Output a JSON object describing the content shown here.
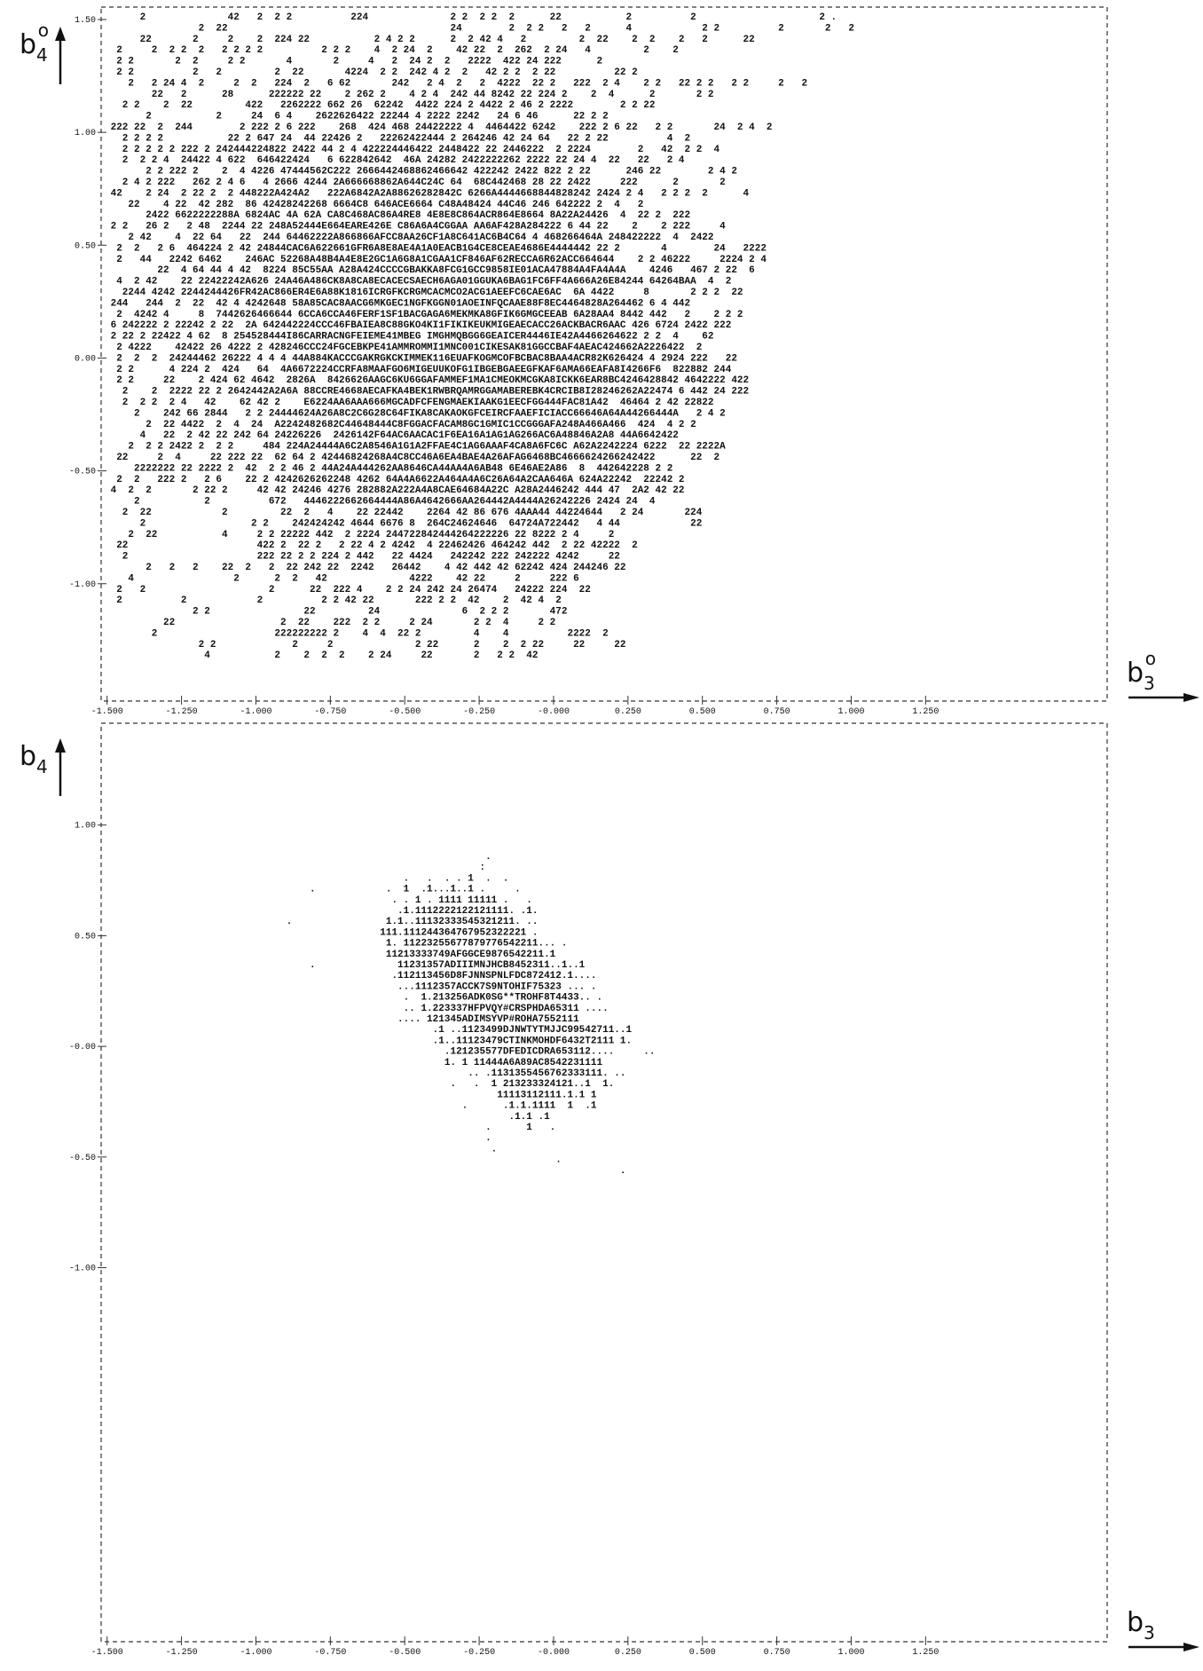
{
  "chart_data": [
    {
      "type": "character-plot",
      "y_label": {
        "base": "b",
        "sub": "4",
        "sup": "o"
      },
      "x_label": {
        "base": "b",
        "sub": "3",
        "sup": "o"
      },
      "xlim": [
        -1.52,
        1.86
      ],
      "ylim": [
        -1.52,
        1.555
      ],
      "xticks": [
        {
          "value": -1.5,
          "label": "-1.500"
        },
        {
          "value": -1.25,
          "label": "-1.250"
        },
        {
          "value": -1,
          "label": "-1.000"
        },
        {
          "value": -0.75,
          "label": "-0.750"
        },
        {
          "value": -0.5,
          "label": "-0.500"
        },
        {
          "value": -0.25,
          "label": "-0.250"
        },
        {
          "value": 0,
          "label": "-0.000"
        },
        {
          "value": 0.25,
          "label": "0.250"
        },
        {
          "value": 0.5,
          "label": "0.500"
        },
        {
          "value": 0.75,
          "label": "0.750"
        },
        {
          "value": 1,
          "label": "1.000"
        },
        {
          "value": 1.25,
          "label": "1.250"
        }
      ],
      "yticks": [
        {
          "value": 1.5,
          "label": "1.50"
        },
        {
          "value": 1,
          "label": "1.00"
        },
        {
          "value": 0.5,
          "label": "0.50"
        },
        {
          "value": 0,
          "label": "0.00"
        },
        {
          "value": -0.5,
          "label": "-0.50"
        },
        {
          "value": -1,
          "label": "-1.00"
        }
      ],
      "rows": [
        "      2              42   2  2 2          224              2 2  2 2  2      22           2          2                     2 .",
        "                2  22                                      24        2  2 2   2   2      4            2 2          2       2   2",
        "      22       2     2    2  224 22           2 4 2 2      2  2 42 4   2         2  22    2  2    2   2      22",
        "  2     2  2 2  2   2 2 2 2          2 2 2    4  2 24  2    42 22  2  262  2 24   4         2    2",
        "  2 2       2  2     2 2       4       2     4   2  24 2  2   2222  422 24 222      2",
        "  2 2          2   2         2  22       4224  2 2  242 4 2  2   42 2 2  2 22          22 2",
        "    2   2 24 4  2     2  2   224  2   6 62       242   2 4  2   2  4222  22 2   222  2 4    2 2   22 2 2   2 2     2   2",
        "        22   2      28      222222 22    2 262 2    4 2 4  242 44 8242 22 224 2    2  4      2       2 2",
        "   2 2    2  22         422   2262222 662 26  62242  4422 224 2 4422 2 46 2 2222        2 2 22",
        "       2           2     24  6 4    2622626422 22244 4 2222 2242   24 6 46      22 2 2",
        " 222 22  2  244        2 222 2 6 222    268  424 468 24422222 4  4464422 6242    222 2 6 22   2 2       24  2 4  2",
        "   2 2 2 2           22 2 647 24  44 22426 2   22262422444 2 264246 42 24 64   22 2 22          4  2",
        "   2 2 2 2 2 222 2 242444224822 2422 44 2 4 422224446422 2448422 22 2446222  2 2224        2   42  2 2  4",
        "   2  2 2 4  24422 4 622  646422424   6 622842642  46A 24282 2422222262 2222 22 24 4  22   22   2 4",
        "       2 2 222 2    2  4 4226 47444562C222 2666442468862466642 422242 2422 822 2 22      246 22        2 4 2",
        "   2 4 2 222   262 2 4 6   4 2666 4244 2A666668862A644C24C 64  68C442468 28 22 2422     222      2       2",
        " 42    2 24  2 22 2  2 448222A424A2   222A6842A2A88626282842C 6266A4444668844828242 2424 2 4   2 2 2  2      4",
        "    22    4 22  42 282  86 42428242268 6664C8 646ACE6664 C48A48424 44C46 246 642222 2  4   2",
        "       2422 6622222288A 6824AC 4A 62A CA8C468AC86A4RE8 4E8E8C864ACR864E8664 8A22A24426  4  22 2  222",
        " 2 2   26 2   2 48  2244 22 248A52444E664EARE426E C86A6A4CGGAA AA6AF428A284222 6 44 22    2    2 222     4",
        "    2 42    4  22 64   22  244 64462222A866866AFCC8AA26CF1A8C641AC6B4C64 4 468266464A 248422222  4  2422",
        "  2  2   2 6  464224 2 42 24844CAC6A622661GFR6A8E8AE4A1A0EACB1G4CE8CEAE4686E4444442 22 2       4        24   2222",
        "  2   44   2242 6462    246AC 52268A48B4A4E8E2GC1A6G8A1CGAA1CF846AF62RECCA6R62ACC664644    2 2 46222     2224 2 4",
        "         22  4 64 44 4 42  8224 85C55AA A28A424CCCCGBAKKA8FCG1GCC9858IE01ACA47884A4FA4A4A    4246   467 2 22  6",
        "  4  2 42    22 22422242A626 24A46A486CK8A8CA8ECACECSAECH6AGA01GGUKA6BAG1FC6FF4A666A26E84244 64264BAA  4  2",
        "   2244 4242 2244244426FR42AC866ER4E6A88K1816ICRGFKCRGMCACMCO2ACG1AEEFC6CAE6AC  6A 4422     8       2 2 2  22",
        " 244   244  2  22  42 4 4242648 58A85CAC8AACG6MKGEC1NGFKGGN01AOEINFQCAAE88F8EC4464828A264462 6 4 442",
        "  2  4242 4     8  7442626466644 6CCA6CCA46FERF1SF1BACGAGA6MEKMKA8GFIK6GMGCEEAB 6A28AA4 8442 442   2    2 2 2",
        " 6 242222 2 22242 2 22  2A 642442224CCC46FBAIEA8C88GKO4KI1FIKIKEUKMIGEAECACC26ACKBACR6AAC 426 6724 2422 222",
        " 2 22 2 22422 4 62  8 254528444I86CARRACNGFEIEME41MBEG IMGHMQBGG6GEAICER4446IE42A4466264622 2 2  4    62",
        "  2 4222    42422 26 4222 2 428246CCC24FGCEBKPE41AMMROMMI1MNC001CIKESAK81GGCCBAF4AEAC424662A2226422  2",
        "  2  2  2  24244462 26222 4 4 4 44A884KACCCGAKRGKCKIMMEK116EUAFKOGMCOFBCBAC8BAA4ACR82K626424 4 2924 222   22",
        "  2 2      4 224 2  424   64  4A6672224CCRFA8MAAFGO6MIGEUUKOFG1IBGEBGAEEGFKAF6AMA66EAFA8I4266F6  822882 244",
        "  2 2     22    2 424 62 4642  2826A  8426626AAGC6KU6GGAFAMMEF1MA1CMEOKMCGKA8ICKK6EAR8BC4246428842 4642222 422",
        "   2    2  2222 22 2 2642442A2A6A 88CCRE4668AECAFKA4BEK1RWBRQAMRGGAMABEREBK4CRCIB8I28246262A22474 6 442 24 222",
        "   2  2 2  2 4   42    62 42 2    E6224AA6AAA666MGCADFCFENGMAEKIAAKG1EECFGG444FAC81A42  46464 2 42 22822",
        "     2    242 66 2844   2 2 24444624A26A8C2C6G28C64FIKA8CAKAOKGFCEIRCFAAEFICIACC66646A64A44266444A   2 4 2",
        "       2  22 4422  2  4  24  A2242482682C44648444C8FGGACFACAM8GC1GMIC1CCGGGAFA248A466A466  424  4 2 2",
        "      4   22  2 42 22 242 64 24226226  2426142F64AC6AACAC1F6EA16A1AG1AG266AC6A48846A2A8 44A6642422",
        "    2  2 2 2422 2  2 2     484 224A24444A6C2A8546A1G1A2FFAE4C1AG6AAAF4CA8A6FC6C A62A2242224 6222  22 2222A",
        "  22     2  4     22 222 22  62 64 2 42446824268A4C8CC46A6EA4BAE4A26AFAG6468BC4666624266242422      22  2",
        "     2222222 22 2222 2  42  2 2 46 2 44A24A444262AA8646CA44AA4A6AB48 6E46AE2A86  8  442642228 2 2",
        "  2  2   222 2   2 6    22 2 4242626262248 4262 64A4A6622A464A4A6C26A64A2CAA646A 624A22242  22242 2",
        " 4  2  2       2 22 2     42 42 24246 4276 282882A222A4A8CAE64684A22C A28A2446242 444 47  2A2 42 22",
        "     2           2          672   4446222662664444A86A4642666AA264442A4444A26242226 2424 24  4",
        "   2  22            2         22  2   4    22 22442    2264 42 86 676 4AAA44 44224644   2 24       224",
        "      2                  2 2    242424242 4644 6676 8  264C24624646  64724A722442   4 44            22",
        "    2  22           4     2 2 22222 442  2 2224 244722842444264222226 22 8222 2 4     2",
        "  22                      422 2  22 2   2 22 4 2 4242  4 22462426 464242 442  2 22 42222  2",
        "   2                      222 22 2 2 224 2 442   22 4424   242242 222 242222 4242     22",
        "       2   2   2    22  2   2  22 242 22  2242   26442    4 42 442 42 62242 424 244246 22",
        "    4                 2      2  2   42              4222    42 22     2     222 6",
        "  2   2                     2      22  222 4    2 2 24 242 24 26474   24222 224  22",
        "  2          2            2          2 2 42 22       222 2 2  42    2  42 4  2",
        "               2 2                22         24              6  2 2 2       472",
        "          22                  2  22    222  2 2     2 24       2 2  4     2 2",
        "        2                    222222222 2    4  4  22 2         4    4          2222  2",
        "                2 2             2     2              2 22      2    2  2 22     22     22",
        "                 4           2    2  2  2    2 24     22       2   2 2  42"
      ]
    },
    {
      "type": "character-plot",
      "y_label": {
        "base": "b",
        "sub": "4",
        "sup": ""
      },
      "x_label": {
        "base": "b",
        "sub": "3",
        "sup": ""
      },
      "xlim": [
        -1.52,
        1.86
      ],
      "ylim": [
        -2.69,
        1.46
      ],
      "xticks": [
        {
          "value": -1.5,
          "label": "-1.500"
        },
        {
          "value": -1.25,
          "label": "-1.250"
        },
        {
          "value": -1,
          "label": "-1.000"
        },
        {
          "value": -0.75,
          "label": "-0.750"
        },
        {
          "value": -0.5,
          "label": "-0.500"
        },
        {
          "value": -0.25,
          "label": "-0.250"
        },
        {
          "value": 0,
          "label": "-0.000"
        },
        {
          "value": 0.25,
          "label": "0.250"
        },
        {
          "value": 0.5,
          "label": "0.500"
        },
        {
          "value": 0.75,
          "label": "0.750"
        },
        {
          "value": 1,
          "label": "1.000"
        },
        {
          "value": 1.25,
          "label": "1.250"
        }
      ],
      "yticks": [
        {
          "value": 1,
          "label": "1.00"
        },
        {
          "value": 0.5,
          "label": "0.50"
        },
        {
          "value": 0,
          "label": "-0.00"
        },
        {
          "value": -0.5,
          "label": "-0.50"
        },
        {
          "value": -1,
          "label": "-1.00"
        }
      ],
      "rows": [
        "                                                                 .",
        "                                                                :",
        "                                                   .   .  . . 1  .  .",
        "                                   .            .  1  .1...1..1 .     .",
        "                                                 . . 1 . 1111 11111 .   .",
        "                                                  .1.1112222122121111. .1.",
        "                               .                1.1..11132333545321211. ..",
        "                                               111.111244364767952322221 .",
        "                                                1. 11223255677879776542211... .",
        "                                                11213333749AFGGCE9876542211.1",
        "                                   .              11231357ADIIIMNJHCB8452311..1..1",
        "                                                 .112113456D8FJNNSPNLFDC872412.1....",
        "                                                  ...1112357ACCK7S9NTOHIF75323 ... .",
        "                                                   .  1.213256ADK0SG**TROHF8T4433.. .",
        "                                                   .. 1.223337HFPVQY#CRSPHDA65311 ....",
        "                                                  .... 121345ADIMSYVP#ROHA7552111",
        "                                                        .1 ..1123499DJNWTYTMJJC99542711..1",
        "                                                        .1..11123479CTINKMOHDF6432T2111 1.",
        "                                                          .121235577DFEDICDRA653112....     ..",
        "                                                          1. 1 11444A6A89AC8542231111",
        "                                                              .. .1131355456762333111. ..",
        "                                                           .   .  1 213233324121..1  1.",
        "                                                                   11113112111.1.1 1",
        "                                                             .      .1.1.1111  1  .1",
        "                                                                     .1.1 .1",
        "                                                                 .      1   .",
        "                                                                 .",
        "                                                                  .",
        "                                                                             .",
        "                                                                                        ."
      ]
    }
  ]
}
